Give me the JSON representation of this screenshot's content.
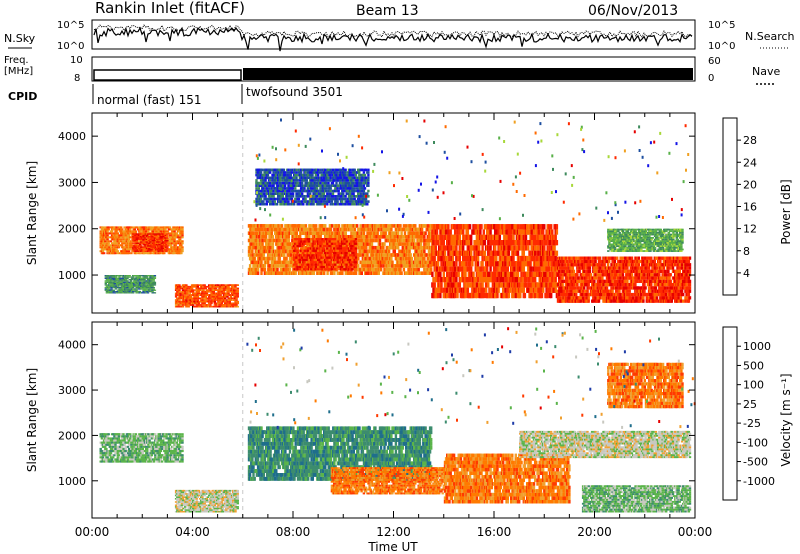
{
  "header": {
    "title": "Rankin Inlet (fitACF)",
    "beam": "Beam 13",
    "date": "06/Nov/2013"
  },
  "strip": {
    "nsky_label": "N.Sky",
    "nsky_ticks": [
      "10^5",
      "10^0"
    ],
    "nsearch_label": "N.Search",
    "nsearch_ticks": [
      "10^5",
      "10^0"
    ],
    "freq_label_1": "Freq.",
    "freq_label_2": "[MHz]",
    "freq_ticks": [
      "10",
      "8"
    ],
    "nave_label": "Nave",
    "nave_ticks": [
      "60",
      "0"
    ],
    "cpid_label": "CPID",
    "cpid_segments": [
      {
        "label": "normal (fast) 151",
        "start_hour": 0,
        "end_hour": 6
      },
      {
        "label": "twofsound 3501",
        "start_hour": 6,
        "end_hour": 24
      }
    ]
  },
  "colors": {
    "power_scale": [
      "#1414e6",
      "#1e4fa0",
      "#3e8a5c",
      "#58b048",
      "#a8d83a",
      "#f0a020",
      "#ff6a00",
      "#ff2a00",
      "#e60000"
    ],
    "velocity_scale": [
      "#1e3ca8",
      "#1f6e8c",
      "#3c8c6e",
      "#5ab44a",
      "#c8c8c0",
      "#f0a030",
      "#ff7a00",
      "#ff3a00",
      "#e60000"
    ]
  },
  "chart_data": [
    {
      "type": "heatmap",
      "name": "power",
      "xlabel": "",
      "ylabel": "Slant Range [km]",
      "xlim": [
        0,
        24
      ],
      "ylim": [
        180,
        4500
      ],
      "y_ticks": [
        "4000",
        "3000",
        "2000",
        "1000"
      ],
      "y_tick_values": [
        4000,
        3000,
        2000,
        1000
      ],
      "colorbar_label": "Power [dB]",
      "colorbar_ticks": [
        "28",
        "24",
        "20",
        "16",
        "12",
        "8",
        "4"
      ],
      "colorbar_range": [
        0,
        32
      ],
      "echo_regions": [
        {
          "t0": 0.3,
          "t1": 3.6,
          "r0": 1450,
          "r1": 2050,
          "level": 22
        },
        {
          "t0": 1.6,
          "t1": 3.0,
          "r0": 1500,
          "r1": 1900,
          "level": 27
        },
        {
          "t0": 3.3,
          "t1": 5.8,
          "r0": 300,
          "r1": 800,
          "level": 25
        },
        {
          "t0": 0.5,
          "t1": 2.5,
          "r0": 600,
          "r1": 1000,
          "level": 10
        },
        {
          "t0": 6.2,
          "t1": 13.5,
          "r0": 1000,
          "r1": 2100,
          "level": 22
        },
        {
          "t0": 8.0,
          "t1": 10.5,
          "r0": 1100,
          "r1": 1800,
          "level": 27
        },
        {
          "t0": 13.5,
          "t1": 18.5,
          "r0": 500,
          "r1": 2100,
          "level": 26
        },
        {
          "t0": 18.5,
          "t1": 23.8,
          "r0": 400,
          "r1": 1400,
          "level": 27
        },
        {
          "t0": 6.5,
          "t1": 11.0,
          "r0": 2500,
          "r1": 3300,
          "level": 5
        },
        {
          "t0": 20.5,
          "t1": 23.5,
          "r0": 1500,
          "r1": 2000,
          "level": 12
        }
      ]
    },
    {
      "type": "heatmap",
      "name": "velocity",
      "xlabel": "Time UT",
      "ylabel": "Slant Range [km]",
      "xlim": [
        0,
        24
      ],
      "ylim": [
        180,
        4500
      ],
      "x_ticks": [
        "00:00",
        "04:00",
        "08:00",
        "12:00",
        "16:00",
        "20:00",
        "00:00"
      ],
      "x_tick_values": [
        0,
        4,
        8,
        12,
        16,
        20,
        24
      ],
      "y_ticks": [
        "4000",
        "3000",
        "2000",
        "1000"
      ],
      "y_tick_values": [
        4000,
        3000,
        2000,
        1000
      ],
      "colorbar_label": "Velocity [m s⁻¹]",
      "colorbar_ticks": [
        "1000",
        "500",
        "100",
        "25",
        "-25",
        "-100",
        "-500",
        "-1000"
      ],
      "echo_regions": [
        {
          "t0": 0.3,
          "t1": 3.6,
          "r0": 1400,
          "r1": 2050,
          "level": 3
        },
        {
          "t0": 3.3,
          "t1": 5.8,
          "r0": 300,
          "r1": 800,
          "level": 4
        },
        {
          "t0": 6.2,
          "t1": 13.5,
          "r0": 1000,
          "r1": 2200,
          "level": 2
        },
        {
          "t0": 9.5,
          "t1": 14.0,
          "r0": 700,
          "r1": 1300,
          "level": 6
        },
        {
          "t0": 14.0,
          "t1": 19.0,
          "r0": 500,
          "r1": 1600,
          "level": 6
        },
        {
          "t0": 17.0,
          "t1": 23.8,
          "r0": 1500,
          "r1": 2100,
          "level": 4
        },
        {
          "t0": 19.5,
          "t1": 23.8,
          "r0": 300,
          "r1": 900,
          "level": 3
        },
        {
          "t0": 20.5,
          "t1": 23.5,
          "r0": 2600,
          "r1": 3600,
          "level": 6
        }
      ]
    }
  ]
}
